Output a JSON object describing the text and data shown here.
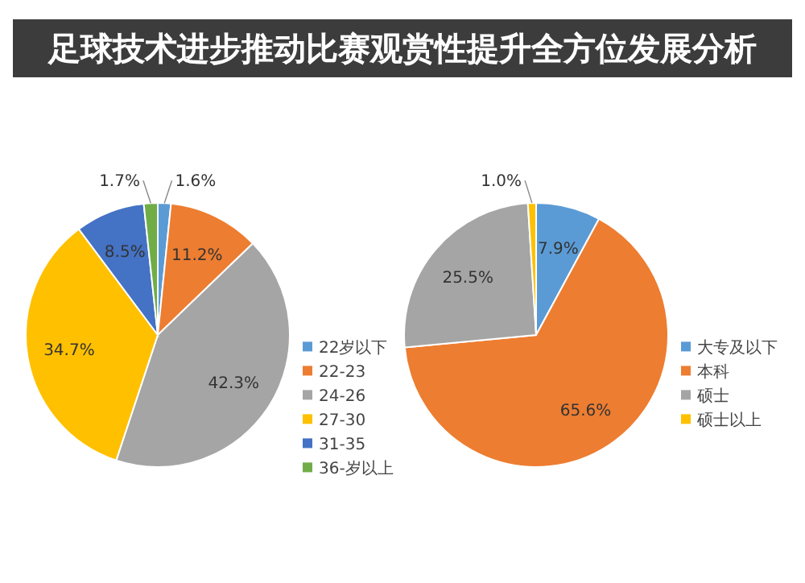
{
  "chart_data": [
    {
      "type": "pie",
      "title": "足球技术进步推动比赛观赏性提升全方位发展分析",
      "categories": [
        "22岁以下",
        "22-23",
        "24-26",
        "27-30",
        "31-35",
        "36-岁以上"
      ],
      "values": [
        1.6,
        11.2,
        42.3,
        34.7,
        8.5,
        1.7
      ],
      "value_labels": [
        "1.6%",
        "11.2%",
        "42.3%",
        "34.7%",
        "8.5%",
        "1.7%"
      ],
      "colors": [
        "#5b9bd5",
        "#ed7d31",
        "#a5a5a5",
        "#ffc000",
        "#4472c4",
        "#70ad47"
      ],
      "legend": "right"
    },
    {
      "type": "pie",
      "categories": [
        "大专及以下",
        "本科",
        "硕士",
        "硕士以上"
      ],
      "values": [
        7.9,
        65.6,
        25.5,
        1.0
      ],
      "value_labels": [
        "7.9%",
        "65.6%",
        "25.5%",
        "1.0%"
      ],
      "colors": [
        "#5b9bd5",
        "#ed7d31",
        "#a5a5a5",
        "#ffc000"
      ],
      "legend": "right"
    }
  ]
}
